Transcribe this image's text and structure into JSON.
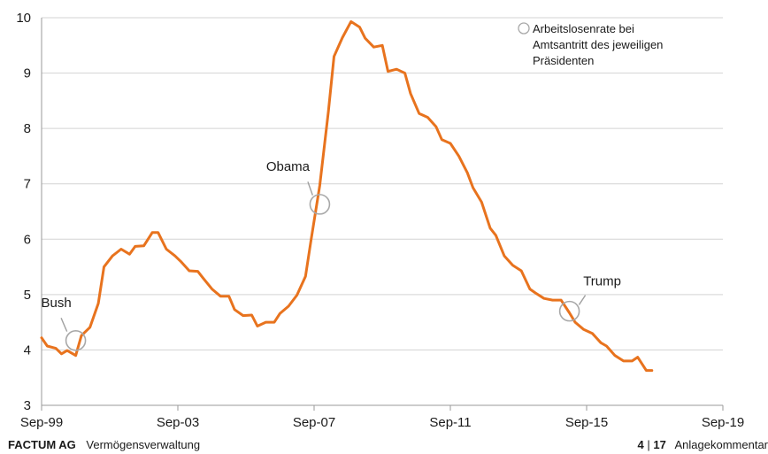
{
  "chart_data": {
    "type": "line",
    "x_tick_labels": [
      "Sep-99",
      "Sep-03",
      "Sep-07",
      "Sep-11",
      "Sep-15",
      "Sep-19"
    ],
    "ylim": [
      3,
      10
    ],
    "y_ticks": [
      3,
      4,
      5,
      6,
      7,
      8,
      9,
      10
    ],
    "grid": "horizontal",
    "legend_text": [
      "Arbeitslosenrate bei",
      "Amtsantritt des jeweiligen",
      "Präsidenten"
    ],
    "series": [
      {
        "color": "#e8731e",
        "points": [
          [
            "1999-09",
            4.22
          ],
          [
            "1999-11",
            4.07
          ],
          [
            "2000-02",
            4.03
          ],
          [
            "2000-04",
            3.93
          ],
          [
            "2000-06",
            3.99
          ],
          [
            "2000-09",
            3.9
          ],
          [
            "2000-11",
            4.26
          ],
          [
            "2001-02",
            4.41
          ],
          [
            "2001-05",
            4.84
          ],
          [
            "2001-07",
            5.5
          ],
          [
            "2001-10",
            5.7
          ],
          [
            "2002-01",
            5.82
          ],
          [
            "2002-04",
            5.73
          ],
          [
            "2002-06",
            5.87
          ],
          [
            "2002-09",
            5.88
          ],
          [
            "2002-12",
            6.12
          ],
          [
            "2003-02",
            6.12
          ],
          [
            "2003-05",
            5.82
          ],
          [
            "2003-08",
            5.7
          ],
          [
            "2003-10",
            5.6
          ],
          [
            "2004-01",
            5.43
          ],
          [
            "2004-04",
            5.42
          ],
          [
            "2004-06",
            5.29
          ],
          [
            "2004-09",
            5.1
          ],
          [
            "2004-12",
            4.97
          ],
          [
            "2005-03",
            4.97
          ],
          [
            "2005-05",
            4.73
          ],
          [
            "2005-08",
            4.62
          ],
          [
            "2005-11",
            4.63
          ],
          [
            "2006-01",
            4.43
          ],
          [
            "2006-04",
            4.5
          ],
          [
            "2006-07",
            4.5
          ],
          [
            "2006-09",
            4.66
          ],
          [
            "2006-12",
            4.79
          ],
          [
            "2007-03",
            4.99
          ],
          [
            "2007-06",
            5.33
          ],
          [
            "2007-08",
            6.0
          ],
          [
            "2007-11",
            6.97
          ],
          [
            "2008-02",
            8.3
          ],
          [
            "2008-04",
            9.3
          ],
          [
            "2008-07",
            9.64
          ],
          [
            "2008-10",
            9.93
          ],
          [
            "2009-01",
            9.83
          ],
          [
            "2009-03",
            9.63
          ],
          [
            "2009-06",
            9.47
          ],
          [
            "2009-09",
            9.5
          ],
          [
            "2009-11",
            9.03
          ],
          [
            "2010-02",
            9.07
          ],
          [
            "2010-05",
            9.0
          ],
          [
            "2010-07",
            8.63
          ],
          [
            "2010-10",
            8.27
          ],
          [
            "2011-01",
            8.2
          ],
          [
            "2011-04",
            8.03
          ],
          [
            "2011-06",
            7.8
          ],
          [
            "2011-09",
            7.73
          ],
          [
            "2011-12",
            7.5
          ],
          [
            "2012-03",
            7.2
          ],
          [
            "2012-05",
            6.93
          ],
          [
            "2012-08",
            6.67
          ],
          [
            "2012-11",
            6.2
          ],
          [
            "2013-01",
            6.07
          ],
          [
            "2013-04",
            5.7
          ],
          [
            "2013-07",
            5.53
          ],
          [
            "2013-10",
            5.43
          ],
          [
            "2014-01",
            5.1
          ],
          [
            "2014-03",
            5.03
          ],
          [
            "2014-06",
            4.93
          ],
          [
            "2014-09",
            4.9
          ],
          [
            "2014-12",
            4.9
          ],
          [
            "2015-03",
            4.67
          ],
          [
            "2015-05",
            4.5
          ],
          [
            "2015-08",
            4.37
          ],
          [
            "2015-11",
            4.3
          ],
          [
            "2016-02",
            4.13
          ],
          [
            "2016-04",
            4.07
          ],
          [
            "2016-07",
            3.9
          ],
          [
            "2016-10",
            3.8
          ],
          [
            "2017-01",
            3.8
          ],
          [
            "2017-03",
            3.87
          ],
          [
            "2017-06",
            3.63
          ],
          [
            "2017-08",
            3.63
          ]
        ]
      }
    ],
    "annotations": [
      {
        "label": "Bush",
        "x": "2000-09",
        "y": 4.17
      },
      {
        "label": "Obama",
        "x": "2007-11",
        "y": 6.63
      },
      {
        "label": "Trump",
        "x": "2015-03",
        "y": 4.7
      }
    ]
  },
  "footer": {
    "company": "FACTUM AG",
    "division": "Vermögensverwaltung",
    "page_current": "4",
    "page_separator": "|",
    "page_total": "17",
    "report_title": "Anlagekommentar"
  }
}
